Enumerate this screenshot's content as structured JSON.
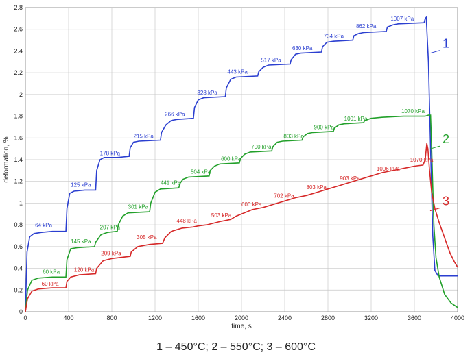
{
  "chart_data": {
    "type": "line",
    "xlabel": "time, s",
    "ylabel": "deformation, %",
    "xlim": [
      0,
      4000
    ],
    "ylim": [
      0,
      2.8
    ],
    "xticks": [
      0,
      400,
      800,
      1200,
      1600,
      2000,
      2400,
      2800,
      3200,
      3600,
      4000
    ],
    "yticks": [
      "0",
      "0.2",
      "0.4",
      "0.6",
      "0.8",
      "1",
      "1.2",
      "1.4",
      "1.6",
      "1.8",
      "2",
      "2.2",
      "2.4",
      "2.6",
      "2.8"
    ],
    "grid": true,
    "caption": "1 – 450°C; 2 – 550°C; 3 – 600°C",
    "series": [
      {
        "label": "1",
        "color": "#2b3fd0",
        "points": [
          [
            0,
            0
          ],
          [
            15,
            0.55
          ],
          [
            40,
            0.69
          ],
          [
            80,
            0.72
          ],
          [
            150,
            0.73
          ],
          [
            250,
            0.74
          ],
          [
            375,
            0.74
          ],
          [
            385,
            0.95
          ],
          [
            410,
            1.09
          ],
          [
            450,
            1.11
          ],
          [
            550,
            1.12
          ],
          [
            650,
            1.12
          ],
          [
            660,
            1.3
          ],
          [
            690,
            1.4
          ],
          [
            730,
            1.42
          ],
          [
            850,
            1.42
          ],
          [
            960,
            1.43
          ],
          [
            970,
            1.51
          ],
          [
            1000,
            1.56
          ],
          [
            1050,
            1.57
          ],
          [
            1250,
            1.58
          ],
          [
            1260,
            1.65
          ],
          [
            1300,
            1.72
          ],
          [
            1350,
            1.76
          ],
          [
            1400,
            1.77
          ],
          [
            1555,
            1.78
          ],
          [
            1565,
            1.88
          ],
          [
            1600,
            1.95
          ],
          [
            1650,
            1.97
          ],
          [
            1850,
            1.98
          ],
          [
            1860,
            2.06
          ],
          [
            1900,
            2.14
          ],
          [
            1950,
            2.16
          ],
          [
            2150,
            2.17
          ],
          [
            2160,
            2.21
          ],
          [
            2200,
            2.25
          ],
          [
            2250,
            2.27
          ],
          [
            2450,
            2.28
          ],
          [
            2460,
            2.32
          ],
          [
            2500,
            2.37
          ],
          [
            2550,
            2.38
          ],
          [
            2740,
            2.39
          ],
          [
            2750,
            2.44
          ],
          [
            2790,
            2.48
          ],
          [
            2850,
            2.49
          ],
          [
            3030,
            2.5
          ],
          [
            3040,
            2.54
          ],
          [
            3080,
            2.56
          ],
          [
            3130,
            2.57
          ],
          [
            3340,
            2.58
          ],
          [
            3350,
            2.62
          ],
          [
            3400,
            2.64
          ],
          [
            3450,
            2.65
          ],
          [
            3690,
            2.66
          ],
          [
            3700,
            2.7
          ],
          [
            3710,
            2.71
          ],
          [
            3730,
            2.3
          ],
          [
            3750,
            1.5
          ],
          [
            3770,
            0.7
          ],
          [
            3790,
            0.38
          ],
          [
            3820,
            0.33
          ],
          [
            3900,
            0.33
          ],
          [
            4000,
            0.33
          ]
        ],
        "labels": [
          {
            "text": "64 kPa",
            "x": 90,
            "y": 0.78
          },
          {
            "text": "125 kPa",
            "x": 420,
            "y": 1.15
          },
          {
            "text": "178 kPa",
            "x": 690,
            "y": 1.44
          },
          {
            "text": "215 kPa",
            "x": 1000,
            "y": 1.6
          },
          {
            "text": "266 kPa",
            "x": 1290,
            "y": 1.8
          },
          {
            "text": "328 kPa",
            "x": 1590,
            "y": 2.0
          },
          {
            "text": "443 kPa",
            "x": 1870,
            "y": 2.19
          },
          {
            "text": "517 kPa",
            "x": 2180,
            "y": 2.3
          },
          {
            "text": "630 kPa",
            "x": 2470,
            "y": 2.41
          },
          {
            "text": "734 kPa",
            "x": 2760,
            "y": 2.52
          },
          {
            "text": "862 kPa",
            "x": 3060,
            "y": 2.61
          },
          {
            "text": "1007 kPa",
            "x": 3380,
            "y": 2.68
          }
        ],
        "num_x": 3860,
        "num_y": 2.43
      },
      {
        "label": "2",
        "color": "#22a02a",
        "points": [
          [
            0,
            0
          ],
          [
            20,
            0.2
          ],
          [
            60,
            0.29
          ],
          [
            120,
            0.31
          ],
          [
            250,
            0.32
          ],
          [
            375,
            0.32
          ],
          [
            385,
            0.48
          ],
          [
            420,
            0.58
          ],
          [
            480,
            0.59
          ],
          [
            640,
            0.6
          ],
          [
            650,
            0.64
          ],
          [
            700,
            0.71
          ],
          [
            760,
            0.73
          ],
          [
            850,
            0.74
          ],
          [
            860,
            0.8
          ],
          [
            900,
            0.88
          ],
          [
            950,
            0.91
          ],
          [
            1150,
            0.92
          ],
          [
            1160,
            1.0
          ],
          [
            1200,
            1.1
          ],
          [
            1250,
            1.13
          ],
          [
            1420,
            1.14
          ],
          [
            1430,
            1.18
          ],
          [
            1460,
            1.22
          ],
          [
            1510,
            1.24
          ],
          [
            1700,
            1.25
          ],
          [
            1710,
            1.3
          ],
          [
            1750,
            1.34
          ],
          [
            1800,
            1.36
          ],
          [
            1980,
            1.37
          ],
          [
            1990,
            1.41
          ],
          [
            2030,
            1.45
          ],
          [
            2080,
            1.47
          ],
          [
            2280,
            1.48
          ],
          [
            2290,
            1.52
          ],
          [
            2330,
            1.56
          ],
          [
            2380,
            1.57
          ],
          [
            2560,
            1.58
          ],
          [
            2570,
            1.61
          ],
          [
            2610,
            1.64
          ],
          [
            2660,
            1.65
          ],
          [
            2850,
            1.66
          ],
          [
            2860,
            1.69
          ],
          [
            2900,
            1.72
          ],
          [
            2950,
            1.73
          ],
          [
            3130,
            1.74
          ],
          [
            3140,
            1.76
          ],
          [
            3200,
            1.78
          ],
          [
            3300,
            1.79
          ],
          [
            3500,
            1.8
          ],
          [
            3700,
            1.8
          ],
          [
            3730,
            1.81
          ],
          [
            3750,
            1.81
          ],
          [
            3760,
            1.5
          ],
          [
            3780,
            0.8
          ],
          [
            3800,
            0.5
          ],
          [
            3830,
            0.32
          ],
          [
            3880,
            0.16
          ],
          [
            3940,
            0.08
          ],
          [
            4000,
            0.04
          ]
        ],
        "labels": [
          {
            "text": "60 kPa",
            "x": 160,
            "y": 0.35
          },
          {
            "text": "145 kPa",
            "x": 420,
            "y": 0.63
          },
          {
            "text": "207 kPa",
            "x": 690,
            "y": 0.76
          },
          {
            "text": "301 kPa",
            "x": 950,
            "y": 0.95
          },
          {
            "text": "441 kPa",
            "x": 1250,
            "y": 1.17
          },
          {
            "text": "504 kPa",
            "x": 1530,
            "y": 1.27
          },
          {
            "text": "600 kPa",
            "x": 1810,
            "y": 1.39
          },
          {
            "text": "700 kPa",
            "x": 2090,
            "y": 1.5
          },
          {
            "text": "803 kPa",
            "x": 2390,
            "y": 1.6
          },
          {
            "text": "900 kPa",
            "x": 2670,
            "y": 1.68
          },
          {
            "text": "1001 kPa",
            "x": 2950,
            "y": 1.76
          },
          {
            "text": "1070 kPa",
            "x": 3480,
            "y": 1.83
          }
        ],
        "num_x": 3860,
        "num_y": 1.55
      },
      {
        "label": "3",
        "color": "#d62828",
        "points": [
          [
            0,
            0
          ],
          [
            20,
            0.12
          ],
          [
            60,
            0.19
          ],
          [
            120,
            0.21
          ],
          [
            250,
            0.22
          ],
          [
            375,
            0.22
          ],
          [
            385,
            0.28
          ],
          [
            420,
            0.32
          ],
          [
            500,
            0.34
          ],
          [
            650,
            0.35
          ],
          [
            660,
            0.4
          ],
          [
            720,
            0.47
          ],
          [
            800,
            0.49
          ],
          [
            970,
            0.51
          ],
          [
            980,
            0.55
          ],
          [
            1040,
            0.6
          ],
          [
            1150,
            0.62
          ],
          [
            1270,
            0.63
          ],
          [
            1290,
            0.68
          ],
          [
            1350,
            0.74
          ],
          [
            1450,
            0.77
          ],
          [
            1550,
            0.78
          ],
          [
            1600,
            0.79
          ],
          [
            1680,
            0.8
          ],
          [
            1800,
            0.83
          ],
          [
            1900,
            0.85
          ],
          [
            1950,
            0.88
          ],
          [
            2050,
            0.92
          ],
          [
            2100,
            0.94
          ],
          [
            2200,
            0.96
          ],
          [
            2300,
            0.99
          ],
          [
            2400,
            1.02
          ],
          [
            2500,
            1.05
          ],
          [
            2600,
            1.07
          ],
          [
            2700,
            1.1
          ],
          [
            2800,
            1.13
          ],
          [
            2900,
            1.16
          ],
          [
            3000,
            1.19
          ],
          [
            3100,
            1.22
          ],
          [
            3200,
            1.25
          ],
          [
            3300,
            1.28
          ],
          [
            3400,
            1.3
          ],
          [
            3500,
            1.32
          ],
          [
            3600,
            1.34
          ],
          [
            3680,
            1.35
          ],
          [
            3700,
            1.4
          ],
          [
            3715,
            1.55
          ],
          [
            3725,
            1.5
          ],
          [
            3740,
            1.3
          ],
          [
            3760,
            1.1
          ],
          [
            3790,
            0.95
          ],
          [
            3830,
            0.82
          ],
          [
            3880,
            0.68
          ],
          [
            3930,
            0.54
          ],
          [
            3970,
            0.46
          ],
          [
            4000,
            0.41
          ]
        ],
        "labels": [
          {
            "text": "60 kPa",
            "x": 150,
            "y": 0.24
          },
          {
            "text": "120 kPa",
            "x": 450,
            "y": 0.37
          },
          {
            "text": "209 kPa",
            "x": 700,
            "y": 0.52
          },
          {
            "text": "305 kPa",
            "x": 1030,
            "y": 0.67
          },
          {
            "text": "448 kPa",
            "x": 1400,
            "y": 0.82
          },
          {
            "text": "503 kPa",
            "x": 1720,
            "y": 0.87
          },
          {
            "text": "600 kPa",
            "x": 2000,
            "y": 0.97
          },
          {
            "text": "702 kPa",
            "x": 2300,
            "y": 1.05
          },
          {
            "text": "803  kPa",
            "x": 2600,
            "y": 1.13
          },
          {
            "text": "903 kPa",
            "x": 2910,
            "y": 1.21
          },
          {
            "text": "1006 kPa",
            "x": 3250,
            "y": 1.3
          },
          {
            "text": "1070 kPa",
            "x": 3560,
            "y": 1.38
          }
        ],
        "num_x": 3860,
        "num_y": 0.98
      }
    ]
  }
}
